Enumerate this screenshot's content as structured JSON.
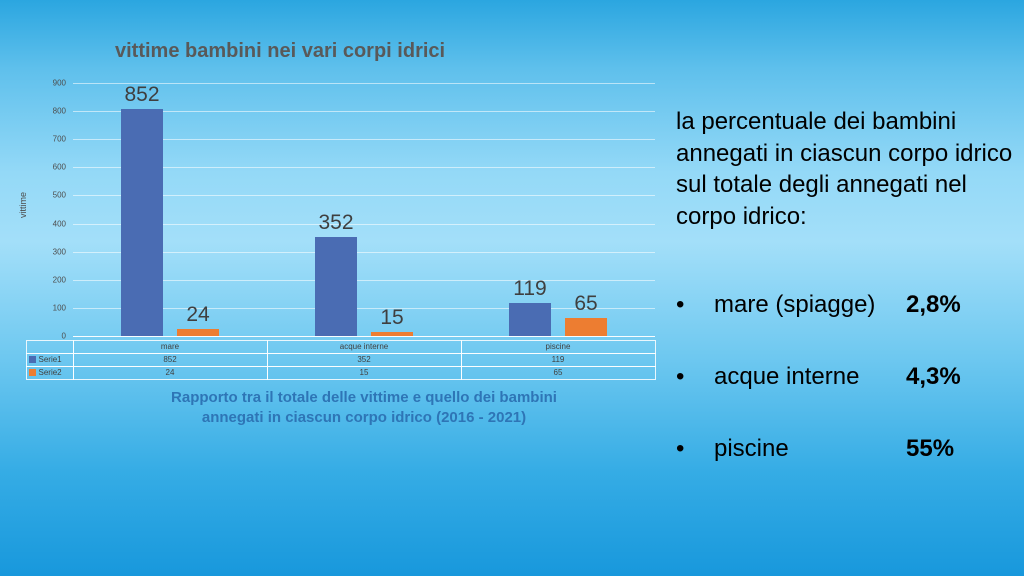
{
  "chart": {
    "title": "vittime bambini nei vari corpi idrici",
    "y_axis_title": "vittime",
    "caption_line1": "Rapporto tra il totale delle vittime e quello dei bambini",
    "caption_line2": "annegati in ciascun corpo idrico (2016  - 2021)"
  },
  "chart_data": {
    "type": "bar",
    "title": "vittime bambini nei vari corpi idrici",
    "categories": [
      "mare",
      "acque interne",
      "piscine"
    ],
    "series": [
      {
        "name": "Serie1",
        "values": [
          852,
          352,
          119
        ],
        "color": "#4a6cb3"
      },
      {
        "name": "Serie2",
        "values": [
          24,
          15,
          65
        ],
        "color": "#ed7d31"
      }
    ],
    "xlabel": "",
    "ylabel": "vittime",
    "ylim": [
      0,
      900
    ],
    "ytick_step": 100,
    "grid": true,
    "data_labels": true,
    "legend_position": "data-table-left",
    "caption": "Rapporto tra il totale delle vittime e quello dei bambini annegati in ciascun corpo idrico (2016  - 2021)"
  },
  "right_panel": {
    "intro": "la percentuale dei bambini annegati in ciascun corpo idrico sul totale degli annegati nel corpo idrico:",
    "bullet_char": "•",
    "bullets": [
      {
        "label": "mare (spiagge)",
        "value": "2,8%"
      },
      {
        "label": "acque interne",
        "value": "4,3%"
      },
      {
        "label": "piscine",
        "value": "55%"
      }
    ]
  },
  "colors": {
    "serie1_blue": "#4a6cb3",
    "serie2_orange": "#ed7d31",
    "caption_blue": "#2e75b6",
    "title_gray": "#595959"
  }
}
